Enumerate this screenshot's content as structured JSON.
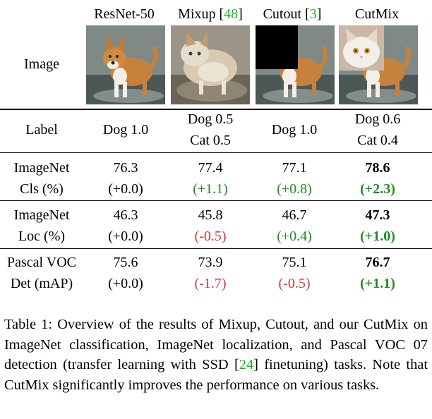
{
  "columns": [
    {
      "name": "ResNet-50",
      "cite": ""
    },
    {
      "name": "Mixup",
      "cite": "48"
    },
    {
      "name": "Cutout",
      "cite": "3"
    },
    {
      "name": "CutMix",
      "cite": ""
    }
  ],
  "row_headers": {
    "image": "Image",
    "label": "Label",
    "cls": [
      "ImageNet",
      "Cls (%)"
    ],
    "loc": [
      "ImageNet",
      "Loc (%)"
    ],
    "det": [
      "Pascal VOC",
      "Det (mAP)"
    ]
  },
  "labels": [
    [
      "Dog 1.0"
    ],
    [
      "Dog 0.5",
      "Cat 0.5"
    ],
    [
      "Dog 1.0"
    ],
    [
      "Dog 0.6",
      "Cat 0.4"
    ]
  ],
  "results": {
    "cls": [
      {
        "value": "76.3",
        "delta": "(+0.0)"
      },
      {
        "value": "77.4",
        "delta": "(+1.1)"
      },
      {
        "value": "77.1",
        "delta": "(+0.8)"
      },
      {
        "value": "78.6",
        "delta": "(+2.3)"
      }
    ],
    "loc": [
      {
        "value": "46.3",
        "delta": "(+0.0)"
      },
      {
        "value": "45.8",
        "delta": "(-0.5)"
      },
      {
        "value": "46.7",
        "delta": "(+0.4)"
      },
      {
        "value": "47.3",
        "delta": "(+1.0)"
      }
    ],
    "det": [
      {
        "value": "75.6",
        "delta": "(+0.0)"
      },
      {
        "value": "73.9",
        "delta": "(-1.7)"
      },
      {
        "value": "75.1",
        "delta": "(-0.5)"
      },
      {
        "value": "76.7",
        "delta": "(+1.1)"
      }
    ]
  },
  "caption": {
    "part1": "Table 1: Overview of the results of Mixup, Cutout, and our CutMix on ImageNet classification, ImageNet localization, and Pascal VOC 07 detection (transfer learning with SSD [",
    "cite": "24",
    "part2": "] finetuning) tasks. Note that CutMix significantly improves the performance on various tasks."
  },
  "colors": {
    "positive": "#1f8a1f",
    "negative": "#d8323c",
    "citation": "#19b419"
  }
}
